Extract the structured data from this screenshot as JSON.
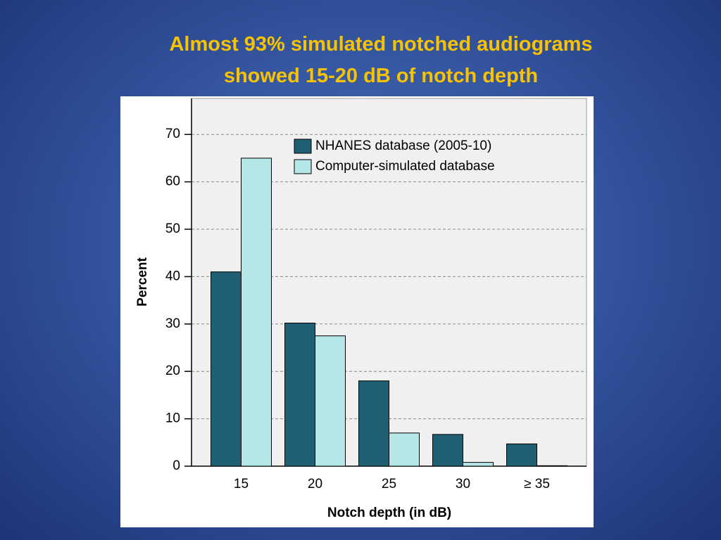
{
  "title": [
    "Almost 93% simulated notched audiograms",
    "showed 15-20 dB of notch depth"
  ],
  "chart_data": {
    "type": "bar",
    "x_label": "Notch depth (in dB)",
    "y_label": "Percent",
    "categories": [
      "15",
      "20",
      "25",
      "30",
      "≥ 35"
    ],
    "series": [
      {
        "name": "NHANES database (2005-10)",
        "color": "#1f5f73",
        "values": [
          41,
          30.2,
          18,
          6.7,
          4.7
        ]
      },
      {
        "name": "Computer-simulated database",
        "color": "#b5e6e8",
        "values": [
          65,
          27.5,
          7,
          0.8,
          0.1
        ]
      }
    ],
    "ylim": [
      0,
      77.6
    ],
    "yticks": [
      0,
      10,
      20,
      30,
      40,
      50,
      60,
      70
    ],
    "grid": true,
    "legend": "top"
  }
}
